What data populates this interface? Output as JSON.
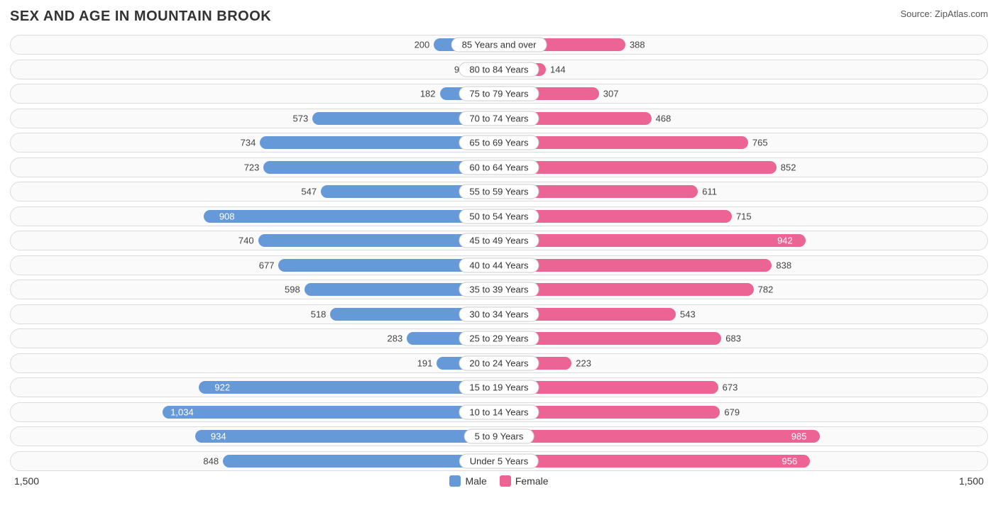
{
  "title": "SEX AND AGE IN MOUNTAIN BROOK",
  "source": "Source: ZipAtlas.com",
  "axis_max": 1500,
  "axis_label_left": "1,500",
  "axis_label_right": "1,500",
  "legend": {
    "male": {
      "label": "Male",
      "color": "#6699d8"
    },
    "female": {
      "label": "Female",
      "color": "#ec6493"
    }
  },
  "colors": {
    "male_bar": "#6699d8",
    "female_bar": "#ec6493",
    "row_border": "#dcdcdc",
    "row_bg": "#fafafa",
    "label_border": "#cfcfcf",
    "text": "#333333",
    "inside_text": "#ffffff"
  },
  "inside_threshold": 900,
  "rows": [
    {
      "label": "85 Years and over",
      "male": 200,
      "male_disp": "200",
      "female": 388,
      "female_disp": "388"
    },
    {
      "label": "80 to 84 Years",
      "male": 93,
      "male_disp": "93",
      "female": 144,
      "female_disp": "144"
    },
    {
      "label": "75 to 79 Years",
      "male": 182,
      "male_disp": "182",
      "female": 307,
      "female_disp": "307"
    },
    {
      "label": "70 to 74 Years",
      "male": 573,
      "male_disp": "573",
      "female": 468,
      "female_disp": "468"
    },
    {
      "label": "65 to 69 Years",
      "male": 734,
      "male_disp": "734",
      "female": 765,
      "female_disp": "765"
    },
    {
      "label": "60 to 64 Years",
      "male": 723,
      "male_disp": "723",
      "female": 852,
      "female_disp": "852"
    },
    {
      "label": "55 to 59 Years",
      "male": 547,
      "male_disp": "547",
      "female": 611,
      "female_disp": "611"
    },
    {
      "label": "50 to 54 Years",
      "male": 908,
      "male_disp": "908",
      "female": 715,
      "female_disp": "715"
    },
    {
      "label": "45 to 49 Years",
      "male": 740,
      "male_disp": "740",
      "female": 942,
      "female_disp": "942"
    },
    {
      "label": "40 to 44 Years",
      "male": 677,
      "male_disp": "677",
      "female": 838,
      "female_disp": "838"
    },
    {
      "label": "35 to 39 Years",
      "male": 598,
      "male_disp": "598",
      "female": 782,
      "female_disp": "782"
    },
    {
      "label": "30 to 34 Years",
      "male": 518,
      "male_disp": "518",
      "female": 543,
      "female_disp": "543"
    },
    {
      "label": "25 to 29 Years",
      "male": 283,
      "male_disp": "283",
      "female": 683,
      "female_disp": "683"
    },
    {
      "label": "20 to 24 Years",
      "male": 191,
      "male_disp": "191",
      "female": 223,
      "female_disp": "223"
    },
    {
      "label": "15 to 19 Years",
      "male": 922,
      "male_disp": "922",
      "female": 673,
      "female_disp": "673"
    },
    {
      "label": "10 to 14 Years",
      "male": 1034,
      "male_disp": "1,034",
      "female": 679,
      "female_disp": "679"
    },
    {
      "label": "5 to 9 Years",
      "male": 934,
      "male_disp": "934",
      "female": 985,
      "female_disp": "985"
    },
    {
      "label": "Under 5 Years",
      "male": 848,
      "male_disp": "848",
      "female": 956,
      "female_disp": "956"
    }
  ]
}
